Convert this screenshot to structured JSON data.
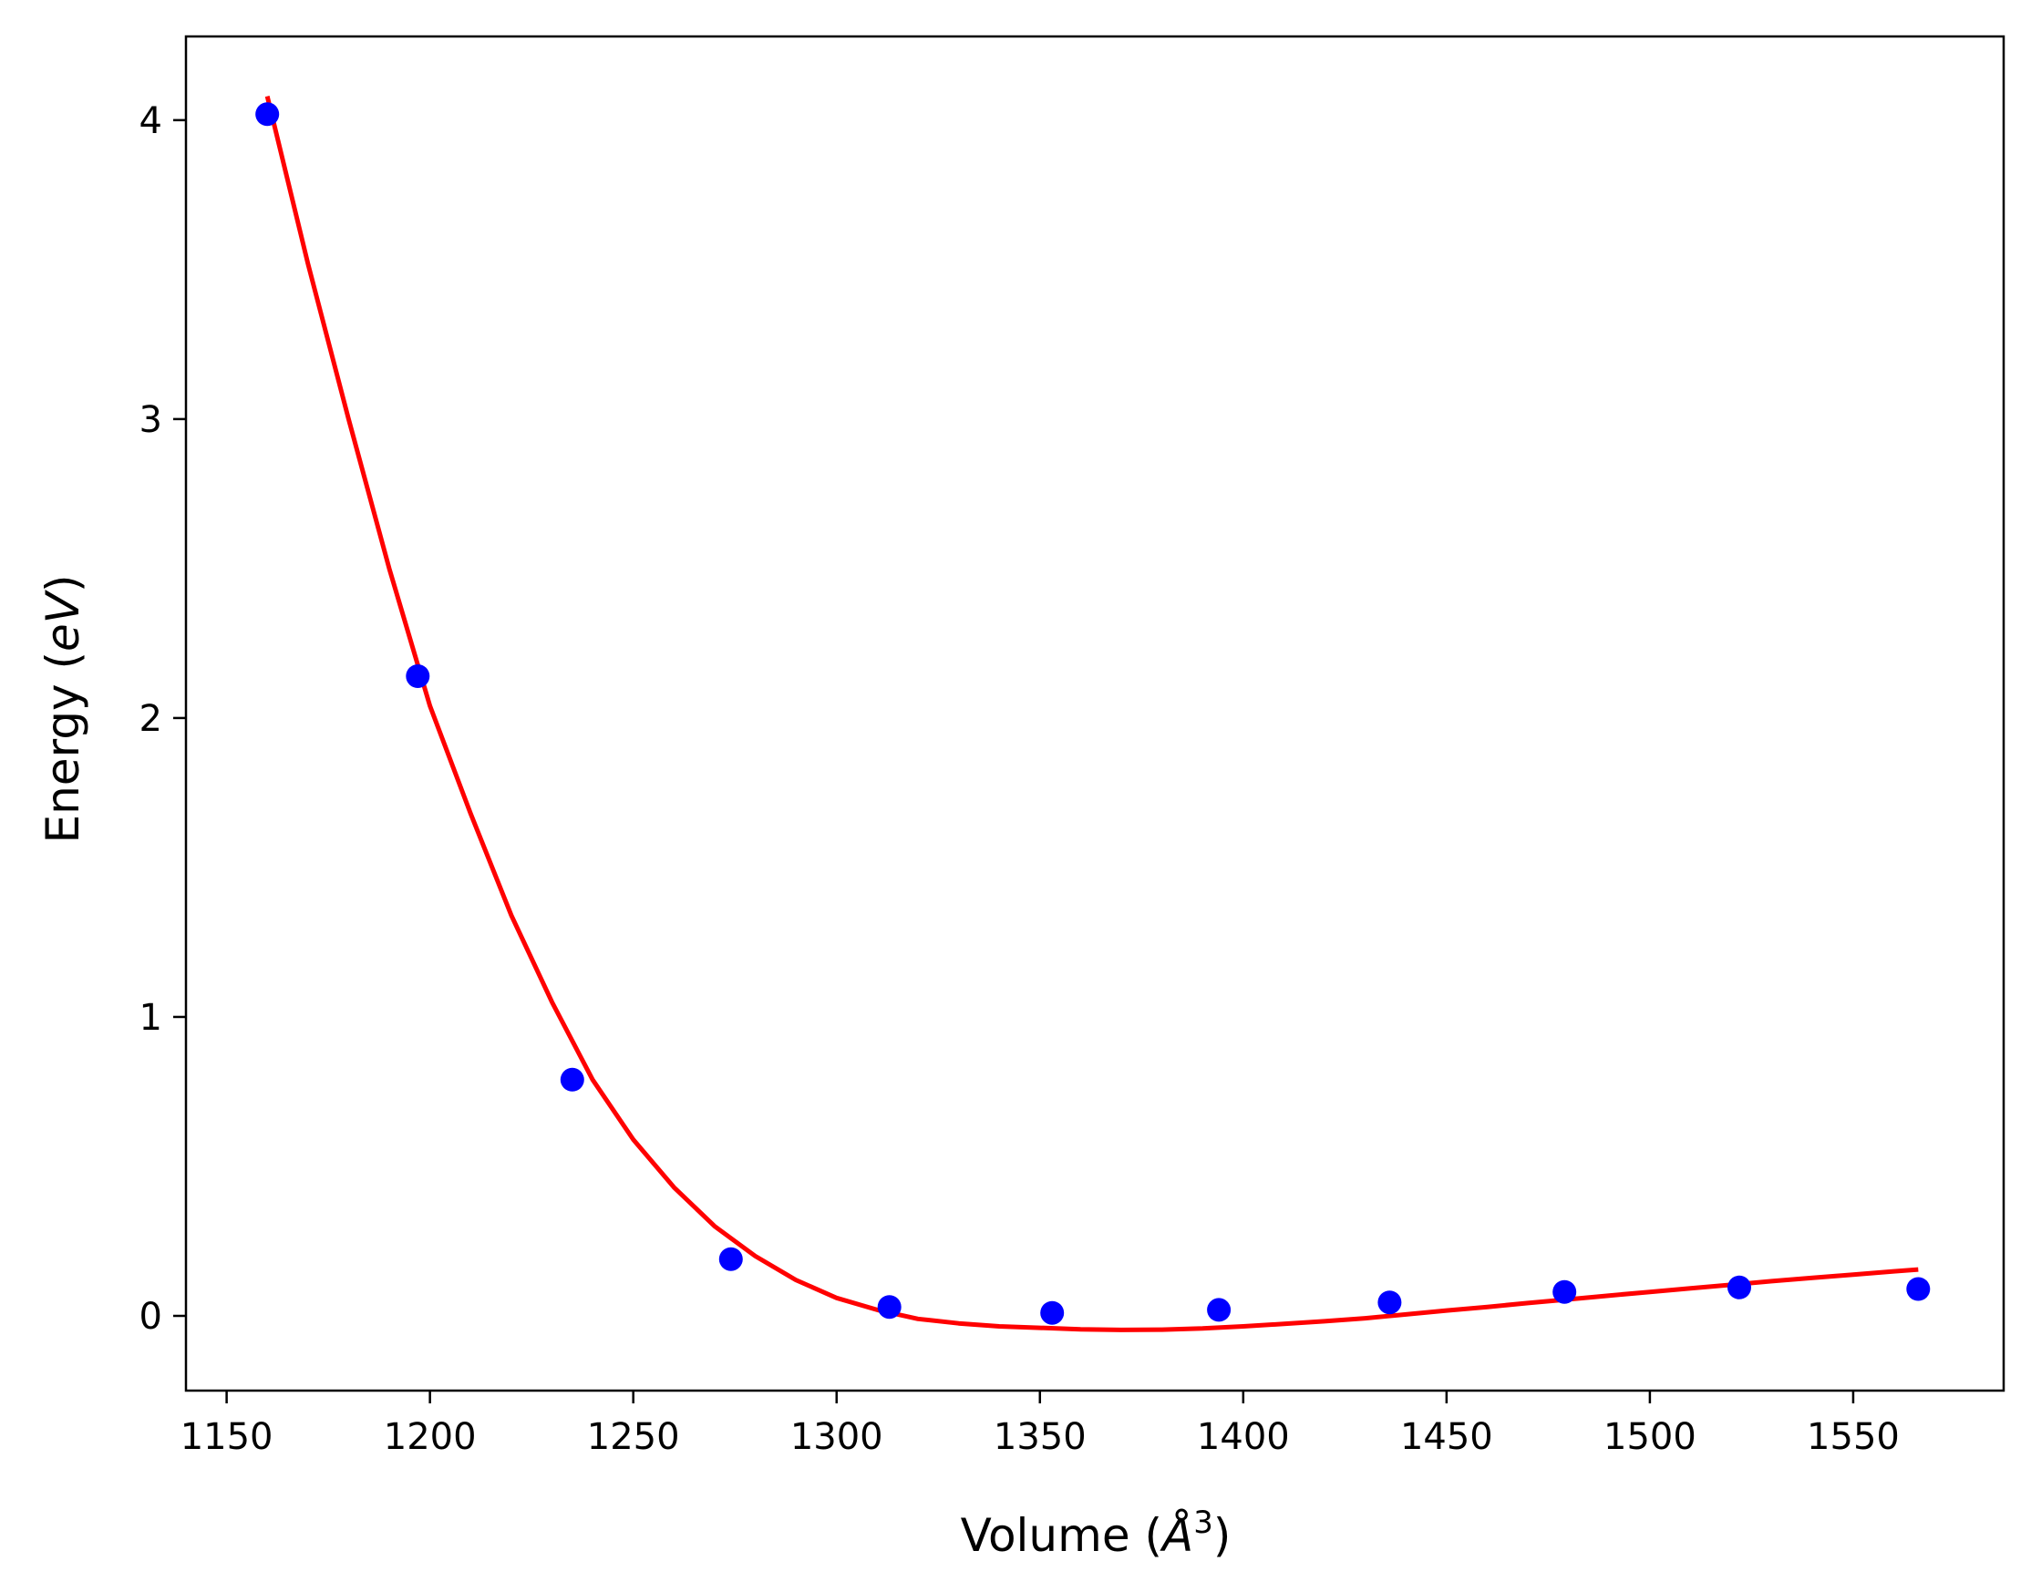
{
  "chart_data": {
    "type": "scatter",
    "xlabel": "Volume (",
    "xlabel_symbol": "Å",
    "xlabel_exp": "3",
    "xlabel_close": ")",
    "ylabel": "Energy (",
    "ylabel_symbol": "eV",
    "ylabel_close": ")",
    "xlim": [
      1140,
      1587
    ],
    "ylim": [
      -0.25,
      4.28
    ],
    "xticks": [
      1150,
      1200,
      1250,
      1300,
      1350,
      1400,
      1450,
      1500,
      1550
    ],
    "yticks": [
      0,
      1,
      2,
      3,
      4
    ],
    "grid": false,
    "legend": "none",
    "series": [
      {
        "kind": "points",
        "color": "#0000ff",
        "points": [
          {
            "x": 1160,
            "y": 4.02
          },
          {
            "x": 1197,
            "y": 2.14
          },
          {
            "x": 1235,
            "y": 0.79
          },
          {
            "x": 1274,
            "y": 0.19
          },
          {
            "x": 1313,
            "y": 0.03
          },
          {
            "x": 1353,
            "y": 0.01
          },
          {
            "x": 1394,
            "y": 0.02
          },
          {
            "x": 1436,
            "y": 0.045
          },
          {
            "x": 1479,
            "y": 0.08
          },
          {
            "x": 1522,
            "y": 0.095
          },
          {
            "x": 1566,
            "y": 0.09
          }
        ]
      },
      {
        "kind": "fit-curve",
        "color": "#ff0000",
        "points": [
          {
            "x": 1160,
            "y": 4.08
          },
          {
            "x": 1170,
            "y": 3.52
          },
          {
            "x": 1180,
            "y": 3.0
          },
          {
            "x": 1190,
            "y": 2.5
          },
          {
            "x": 1200,
            "y": 2.04
          },
          {
            "x": 1210,
            "y": 1.68
          },
          {
            "x": 1220,
            "y": 1.34
          },
          {
            "x": 1230,
            "y": 1.05
          },
          {
            "x": 1240,
            "y": 0.79
          },
          {
            "x": 1250,
            "y": 0.59
          },
          {
            "x": 1260,
            "y": 0.43
          },
          {
            "x": 1270,
            "y": 0.3
          },
          {
            "x": 1280,
            "y": 0.2
          },
          {
            "x": 1290,
            "y": 0.12
          },
          {
            "x": 1300,
            "y": 0.06
          },
          {
            "x": 1310,
            "y": 0.02
          },
          {
            "x": 1320,
            "y": -0.01
          },
          {
            "x": 1330,
            "y": -0.025
          },
          {
            "x": 1340,
            "y": -0.035
          },
          {
            "x": 1350,
            "y": -0.04
          },
          {
            "x": 1360,
            "y": -0.045
          },
          {
            "x": 1370,
            "y": -0.047
          },
          {
            "x": 1380,
            "y": -0.046
          },
          {
            "x": 1390,
            "y": -0.042
          },
          {
            "x": 1400,
            "y": -0.035
          },
          {
            "x": 1410,
            "y": -0.027
          },
          {
            "x": 1420,
            "y": -0.018
          },
          {
            "x": 1430,
            "y": -0.008
          },
          {
            "x": 1440,
            "y": 0.005
          },
          {
            "x": 1450,
            "y": 0.018
          },
          {
            "x": 1460,
            "y": 0.03
          },
          {
            "x": 1470,
            "y": 0.043
          },
          {
            "x": 1480,
            "y": 0.055
          },
          {
            "x": 1490,
            "y": 0.068
          },
          {
            "x": 1500,
            "y": 0.08
          },
          {
            "x": 1510,
            "y": 0.092
          },
          {
            "x": 1520,
            "y": 0.104
          },
          {
            "x": 1530,
            "y": 0.116
          },
          {
            "x": 1540,
            "y": 0.127
          },
          {
            "x": 1550,
            "y": 0.138
          },
          {
            "x": 1560,
            "y": 0.149
          },
          {
            "x": 1566,
            "y": 0.155
          }
        ]
      }
    ]
  }
}
